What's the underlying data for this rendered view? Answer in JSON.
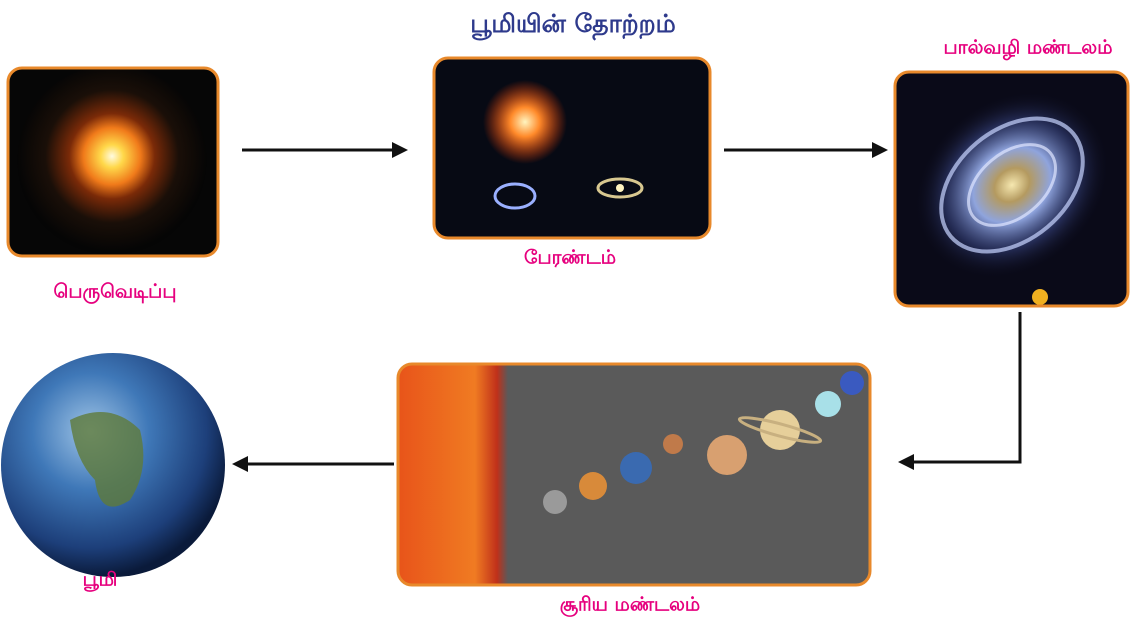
{
  "title": "பூமியின் தோற்றம்",
  "nodes": [
    {
      "label": "பெருவெடிப்பு"
    },
    {
      "label": "பேரண்டம்"
    },
    {
      "label": "பால்வழி மண்டலம்"
    },
    {
      "label": "சூரிய மண்டலம்"
    },
    {
      "label": "பூமி"
    }
  ]
}
